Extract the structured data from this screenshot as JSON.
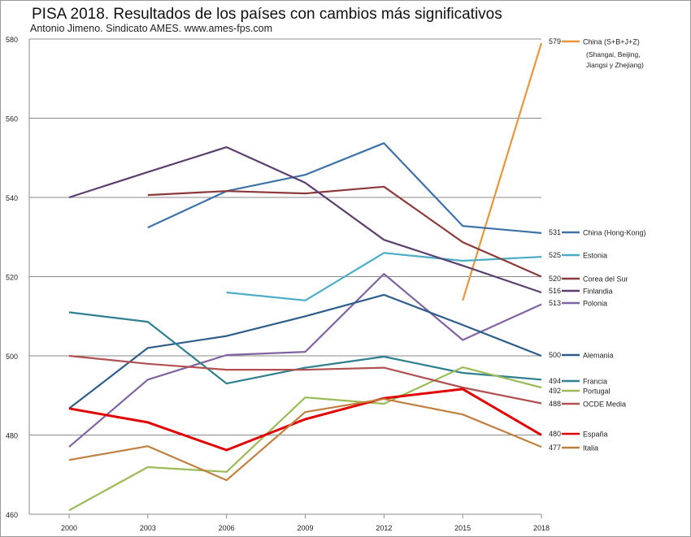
{
  "chart_data": {
    "type": "line",
    "title": "PISA 2018. Resultados de los países con cambios más significativos",
    "subtitle": "Antonio Jimeno. Sindicato AMES. www.ames-fps.com",
    "xlabel": "",
    "ylabel": "",
    "x": [
      2000,
      2003,
      2006,
      2009,
      2012,
      2015,
      2018
    ],
    "x_tick_labels": [
      "2000",
      "2003",
      "2006",
      "2009",
      "2012",
      "2015",
      "2018"
    ],
    "ylim": [
      460,
      580
    ],
    "y_ticks": [
      460,
      480,
      500,
      520,
      540,
      560,
      580
    ],
    "y_tick_labels": [
      "460",
      "480",
      "500",
      "520",
      "540",
      "560",
      "580"
    ],
    "grid": "horizontal",
    "legend": "right, end-of-line labels",
    "series": [
      {
        "name": "China (S+B+J+Z)",
        "note": "(Shangai, Beijing, Jiangsi y Zhejiang)",
        "end_label": "579",
        "color": "#E8963C",
        "values": [
          null,
          null,
          null,
          null,
          null,
          514,
          579
        ]
      },
      {
        "name": "China (Hong-Kong)",
        "end_label": "531",
        "color": "#3F72A8",
        "values": [
          null,
          532.4,
          541.6,
          545.7,
          553.7,
          532.8,
          531
        ]
      },
      {
        "name": "Estonia",
        "end_label": "525",
        "color": "#4BACC6",
        "values": [
          null,
          null,
          516,
          514,
          526,
          524,
          525
        ]
      },
      {
        "name": "Corea del Sur",
        "end_label": "520",
        "color": "#8B3A3A",
        "values": [
          null,
          540.6,
          541.6,
          541,
          542.7,
          528.7,
          520
        ]
      },
      {
        "name": "Finlandia",
        "end_label": "516",
        "color": "#5B3F6E",
        "values": [
          540,
          546.4,
          552.7,
          543.7,
          529.3,
          522.8,
          516
        ]
      },
      {
        "name": "Polonia",
        "end_label": "513",
        "color": "#8064A2",
        "values": [
          477,
          494,
          500.2,
          501,
          520.7,
          504,
          513
        ]
      },
      {
        "name": "Alemania",
        "end_label": "500",
        "color": "#2E5D8A",
        "values": [
          486.7,
          502,
          505,
          510,
          515.4,
          507.8,
          500
        ]
      },
      {
        "name": "Francia",
        "end_label": "494",
        "color": "#2F7F8F",
        "values": [
          511,
          508.6,
          493,
          497,
          499.8,
          495.7,
          494
        ]
      },
      {
        "name": "Portugal",
        "end_label": "492",
        "color": "#9BBB59",
        "values": [
          461,
          471.9,
          470.7,
          489.5,
          487.9,
          497.1,
          492
        ]
      },
      {
        "name": "OCDE Media",
        "end_label": "488",
        "color": "#B05050",
        "values": [
          500,
          498,
          496.5,
          496.5,
          497,
          492,
          488
        ]
      },
      {
        "name": "España",
        "end_label": "480",
        "color": "#E00000",
        "values": [
          486.7,
          483.2,
          476.2,
          484,
          489.3,
          491.6,
          480
        ]
      },
      {
        "name": "Italia",
        "end_label": "477",
        "color": "#C0803F",
        "values": [
          473.7,
          477.2,
          468.6,
          485.8,
          489.1,
          485.2,
          477
        ]
      }
    ]
  }
}
